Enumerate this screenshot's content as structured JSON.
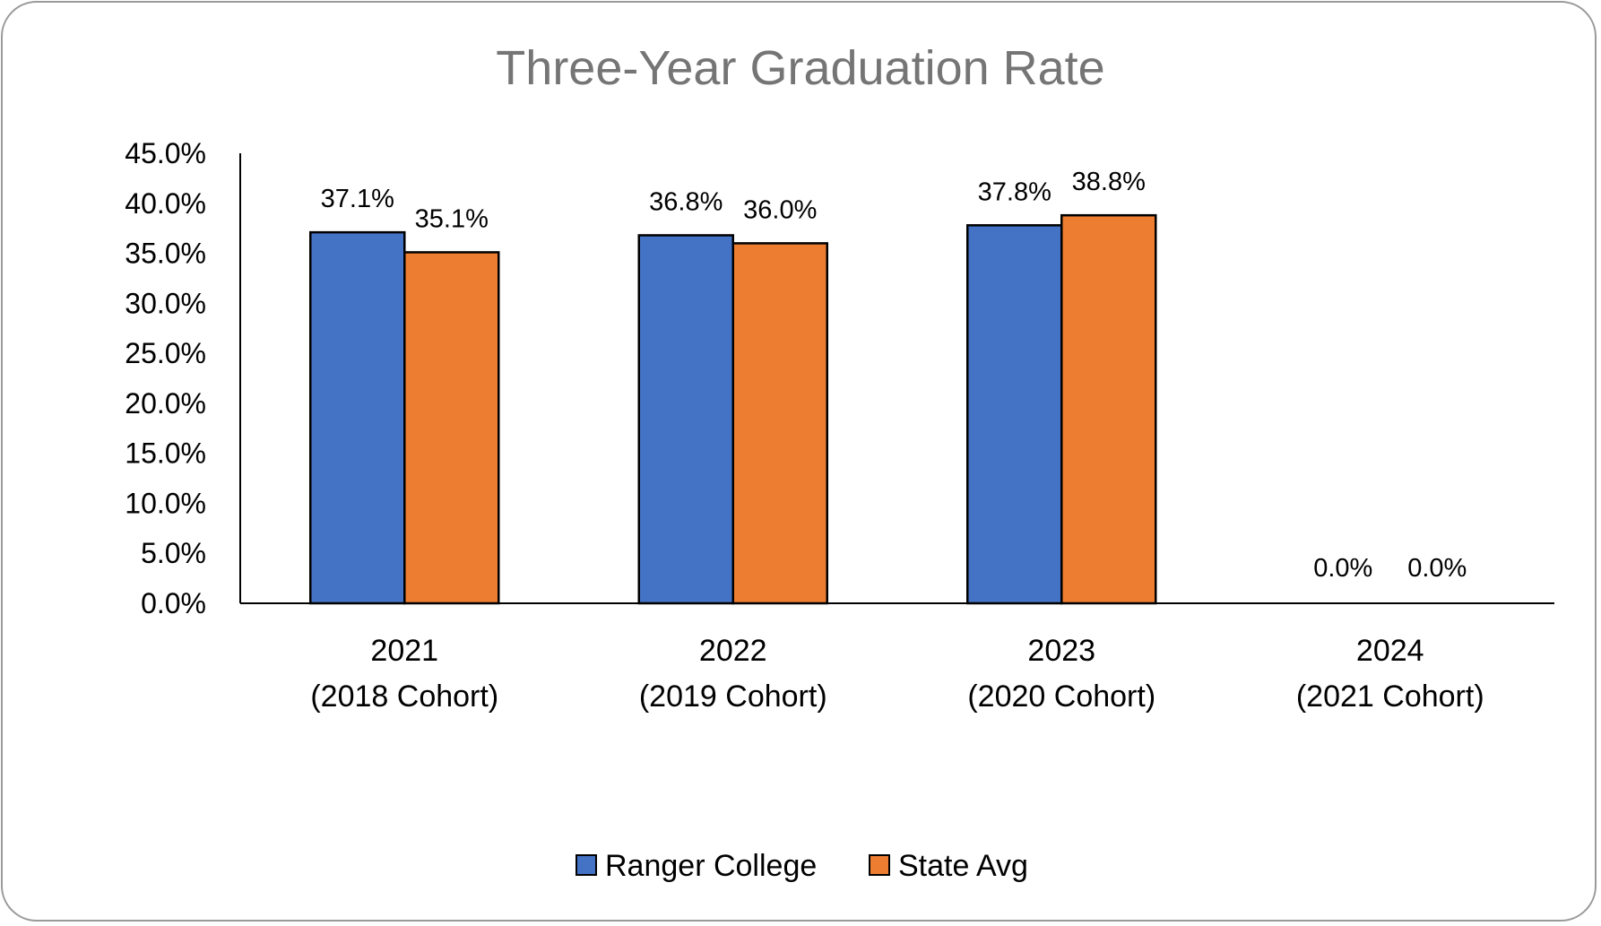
{
  "chart_data": {
    "type": "bar",
    "title": "Three-Year Graduation Rate",
    "xlabel": "",
    "ylabel": "",
    "ylim": [
      0,
      45
    ],
    "y_ticks": [
      "0.0%",
      "5.0%",
      "10.0%",
      "15.0%",
      "20.0%",
      "25.0%",
      "30.0%",
      "35.0%",
      "40.0%",
      "45.0%"
    ],
    "y_tick_values": [
      0,
      5,
      10,
      15,
      20,
      25,
      30,
      35,
      40,
      45
    ],
    "categories": [
      [
        "2021",
        "(2018 Cohort)"
      ],
      [
        "2022",
        "(2019 Cohort)"
      ],
      [
        "2023",
        "(2020 Cohort)"
      ],
      [
        "2024",
        "(2021 Cohort)"
      ]
    ],
    "series": [
      {
        "name": "Ranger College",
        "color": "#4472C4",
        "values": [
          37.1,
          36.8,
          37.8,
          0.0
        ],
        "labels": [
          "37.1%",
          "36.8%",
          "37.8%",
          "0.0%"
        ]
      },
      {
        "name": "State Avg",
        "color": "#ED7D31",
        "values": [
          35.1,
          36.0,
          38.8,
          0.0
        ],
        "labels": [
          "35.1%",
          "36.0%",
          "38.8%",
          "0.0%"
        ]
      }
    ],
    "grid": false,
    "legend_position": "bottom-center"
  }
}
